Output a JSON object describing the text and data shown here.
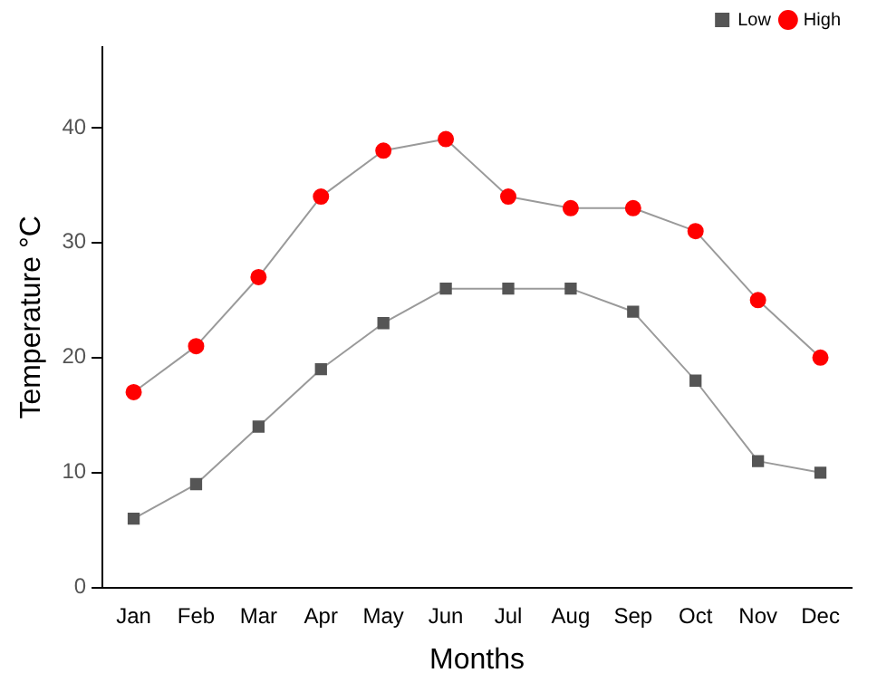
{
  "chart_data": {
    "type": "line",
    "xlabel": "Months",
    "ylabel": "Temperature °C",
    "categories": [
      "Jan",
      "Feb",
      "Mar",
      "Apr",
      "May",
      "Jun",
      "Jul",
      "Aug",
      "Sep",
      "Oct",
      "Nov",
      "Dec"
    ],
    "series": [
      {
        "name": "Low",
        "color": "#555555",
        "marker": "square",
        "values": [
          6,
          9,
          14,
          19,
          23,
          26,
          26,
          26,
          24,
          18,
          11,
          10
        ]
      },
      {
        "name": "High",
        "color": "#ff0000",
        "marker": "circle",
        "values": [
          17,
          21,
          27,
          34,
          38,
          39,
          34,
          33,
          33,
          31,
          25,
          20
        ]
      }
    ],
    "ylim": [
      0,
      47
    ],
    "yticks": [
      0,
      10,
      20,
      30,
      40
    ],
    "grid": false,
    "legend": "top right",
    "line_style": "solid"
  }
}
